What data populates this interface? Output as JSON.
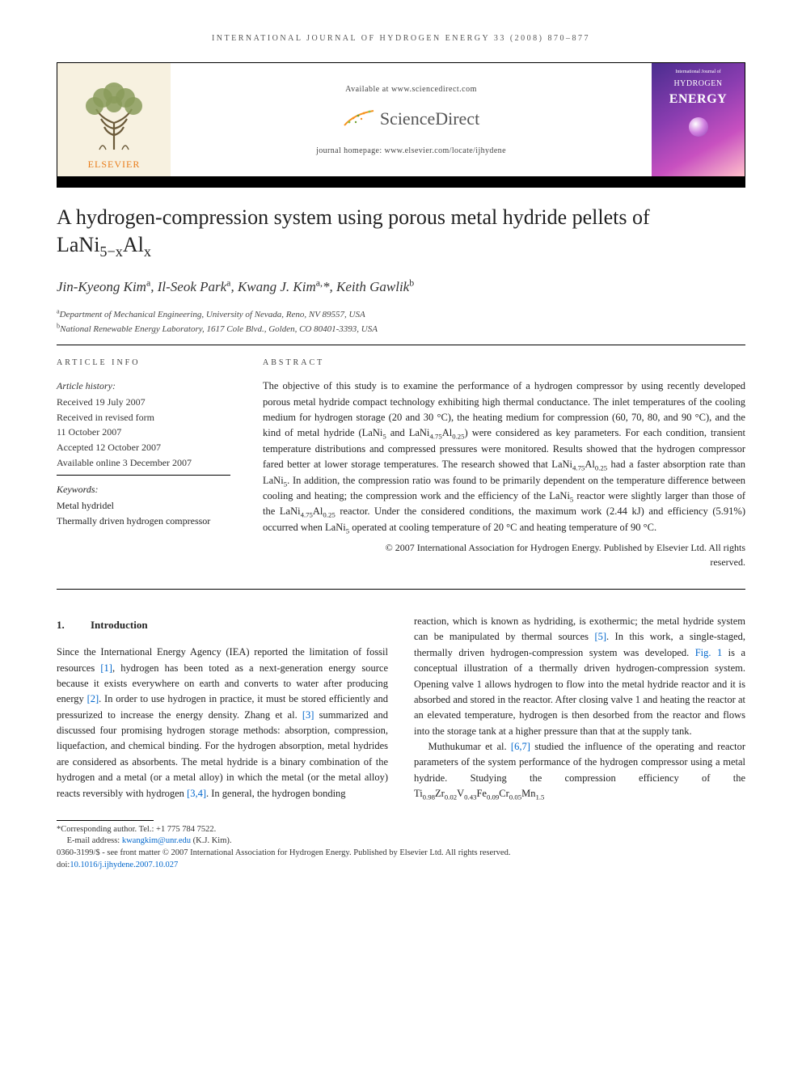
{
  "running_header": "INTERNATIONAL JOURNAL OF HYDROGEN ENERGY 33 (2008) 870–877",
  "banner": {
    "publisher": "ELSEVIER",
    "available_at": "Available at www.sciencedirect.com",
    "sd_brand": "ScienceDirect",
    "homepage_label": "journal homepage: www.elsevier.com/locate/ijhydene",
    "cover": {
      "top_line": "International Journal of",
      "word1": "HYDROGEN",
      "word2": "ENERGY"
    }
  },
  "title_pre": "A hydrogen-compression system using porous metal hydride pellets of ",
  "title_formula_html": "LaNi<span class='sub'>5−x</span>Al<span class='sub'>x</span>",
  "authors_html": "Jin-Kyeong Kim<span class='aff-mark'>a</span>, Il-Seok Park<span class='aff-mark'>a</span>, Kwang J. Kim<span class='aff-mark'>a,</span>*, Keith Gawlik<span class='aff-mark'>b</span>",
  "affiliations": {
    "a": "Department of Mechanical Engineering, University of Nevada, Reno, NV 89557, USA",
    "b": "National Renewable Energy Laboratory, 1617 Cole Blvd., Golden, CO 80401-3393, USA"
  },
  "labels": {
    "article_info": "ARTICLE INFO",
    "abstract": "ABSTRACT",
    "history": "Article history:",
    "keywords": "Keywords:"
  },
  "history": {
    "received": "Received 19 July 2007",
    "revised1": "Received in revised form",
    "revised2": "11 October 2007",
    "accepted": "Accepted 12 October 2007",
    "online": "Available online 3 December 2007"
  },
  "keywords": [
    "Metal hydridel",
    "Thermally driven hydrogen compressor"
  ],
  "abstract_html": "The objective of this study is to examine the performance of a hydrogen compressor by using recently developed porous metal hydride compact technology exhibiting high thermal conductance. The inlet temperatures of the cooling medium for hydrogen storage (20 and 30 °C), the heating medium for compression (60, 70, 80, and 90 °C), and the kind of metal hydride (LaNi<span class='sub'>5</span> and LaNi<span class='sub'>4.75</span>Al<span class='sub'>0.25</span>) were considered as key parameters. For each condition, transient temperature distributions and compressed pressures were monitored. Results showed that the hydrogen compressor fared better at lower storage temperatures. The research showed that LaNi<span class='sub'>4.75</span>Al<span class='sub'>0.25</span> had a faster absorption rate than LaNi<span class='sub'>5</span>. In addition, the compression ratio was found to be primarily dependent on the temperature difference between cooling and heating; the compression work and the efficiency of the LaNi<span class='sub'>5</span> reactor were slightly larger than those of the LaNi<span class='sub'>4.75</span>Al<span class='sub'>0.25</span> reactor. Under the considered conditions, the maximum work (2.44 kJ) and efficiency (5.91%) occurred when LaNi<span class='sub'>5</span> operated at cooling temperature of 20 °C and heating temperature of 90 °C.",
  "copyright1": "© 2007 International Association for Hydrogen Energy. Published by Elsevier Ltd. All rights",
  "copyright2": "reserved.",
  "section1": {
    "num": "1.",
    "title": "Introduction"
  },
  "body": {
    "p1_html": "Since the International Energy Agency (IEA) reported the limitation of fossil resources <a class='ref-link' data-name='citation-link' data-interactable='true'>[1]</a>, hydrogen has been toted as a next-generation energy source because it exists everywhere on earth and converts to water after producing energy <a class='ref-link' data-name='citation-link' data-interactable='true'>[2]</a>. In order to use hydrogen in practice, it must be stored efficiently and pressurized to increase the energy density. Zhang et al. <a class='ref-link' data-name='citation-link' data-interactable='true'>[3]</a> summarized and discussed four promising hydrogen storage methods: absorption, compression, liquefaction, and chemical binding. For the hydrogen absorption, metal hydrides are considered as absorbents. The metal hydride is a binary combination of the hydrogen and a metal (or a metal alloy) in which the metal (or the metal alloy) reacts reversibly with hydrogen <a class='ref-link' data-name='citation-link' data-interactable='true'>[3,4]</a>. In general, the hydrogen bonding",
    "p1b_html": "reaction, which is known as hydriding, is exothermic; the metal hydride system can be manipulated by thermal sources <a class='ref-link' data-name='citation-link' data-interactable='true'>[5]</a>. In this work, a single-staged, thermally driven hydrogen-compression system was developed. <a class='ref-link' data-name='figure-link' data-interactable='true'>Fig. 1</a> is a conceptual illustration of a thermally driven hydrogen-compression system. Opening valve 1 allows hydrogen to flow into the metal hydride reactor and it is absorbed and stored in the reactor. After closing valve 1 and heating the reactor at an elevated temperature, hydrogen is then desorbed from the reactor and flows into the storage tank at a higher pressure than that at the supply tank.",
    "p2_html": "Muthukumar et al. <a class='ref-link' data-name='citation-link' data-interactable='true'>[6,7]</a> studied the influence of the operating and reactor parameters of the system performance of the hydrogen compressor using a metal hydride. Studying the compression efficiency of the Ti<span class='sub'>0.98</span>Zr<span class='sub'>0.02</span>V<span class='sub'>0.43</span>Fe<span class='sub'>0.09</span>Cr<span class='sub'>0.05</span>Mn<span class='sub'>1.5</span>"
  },
  "footnotes": {
    "corr": "*Corresponding author. Tel.: +1 775 784 7522.",
    "email_label": "E-mail address: ",
    "email": "kwangkim@unr.edu",
    "email_paren": " (K.J. Kim).",
    "copyright": "0360-3199/$ - see front matter © 2007 International Association for Hydrogen Energy. Published by Elsevier Ltd. All rights reserved.",
    "doi_label": "doi:",
    "doi": "10.1016/j.ijhydene.2007.10.027"
  },
  "colors": {
    "link": "#0066cc",
    "elsevier_orange": "#e97c1a",
    "cover_gradient_start": "#4a2d8f",
    "cover_gradient_end": "#ffc0cb"
  }
}
